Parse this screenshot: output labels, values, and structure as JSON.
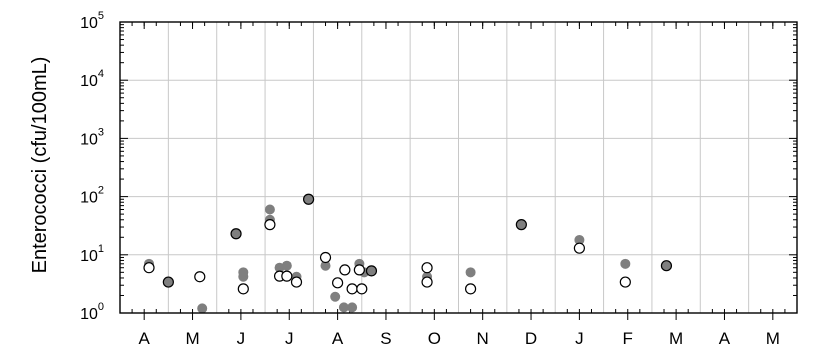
{
  "chart_data": {
    "type": "scatter",
    "title": "",
    "xlabel": "",
    "ylabel": "Enterococci (cfu/100mL)",
    "yscale": "log",
    "ylim": [
      1,
      100000
    ],
    "y_ticks": [
      {
        "base": "10",
        "exp": "0",
        "value": 1
      },
      {
        "base": "10",
        "exp": "1",
        "value": 10
      },
      {
        "base": "10",
        "exp": "2",
        "value": 100
      },
      {
        "base": "10",
        "exp": "3",
        "value": 1000
      },
      {
        "base": "10",
        "exp": "4",
        "value": 10000
      },
      {
        "base": "10",
        "exp": "5",
        "value": 100000
      }
    ],
    "categories": [
      "A",
      "M",
      "J",
      "J",
      "A",
      "S",
      "O",
      "N",
      "D",
      "J",
      "F",
      "M",
      "A",
      "M"
    ],
    "grid": true,
    "legend": "none",
    "colors": {
      "filled": "#7f7f7f",
      "open_fill": "#ffffff",
      "stroke": "#000000",
      "grid": "#c8c8c8"
    },
    "series": [
      {
        "marker": "filled",
        "points": [
          {
            "x": 0.1,
            "y": 7
          },
          {
            "x": 1.2,
            "y": 1.2
          },
          {
            "x": 2.05,
            "y": 4.2
          },
          {
            "x": 2.05,
            "y": 5
          },
          {
            "x": 2.6,
            "y": 40
          },
          {
            "x": 2.6,
            "y": 60
          },
          {
            "x": 2.8,
            "y": 6
          },
          {
            "x": 2.95,
            "y": 6.5
          },
          {
            "x": 3.15,
            "y": 4.2
          },
          {
            "x": 3.75,
            "y": 6.5
          },
          {
            "x": 3.95,
            "y": 1.9
          },
          {
            "x": 4.13,
            "y": 1.25
          },
          {
            "x": 4.3,
            "y": 1.25
          },
          {
            "x": 4.45,
            "y": 7
          },
          {
            "x": 4.55,
            "y": 5
          },
          {
            "x": 5.85,
            "y": 4.2
          },
          {
            "x": 6.75,
            "y": 5
          },
          {
            "x": 9.0,
            "y": 18
          },
          {
            "x": 9.95,
            "y": 7
          }
        ]
      },
      {
        "marker": "open",
        "points": [
          {
            "x": 0.1,
            "y": 6
          },
          {
            "x": 1.15,
            "y": 4.2
          },
          {
            "x": 2.05,
            "y": 2.6
          },
          {
            "x": 2.6,
            "y": 33
          },
          {
            "x": 2.8,
            "y": 4.3
          },
          {
            "x": 2.95,
            "y": 4.3
          },
          {
            "x": 3.15,
            "y": 3.4
          },
          {
            "x": 3.75,
            "y": 9
          },
          {
            "x": 4.0,
            "y": 3.3
          },
          {
            "x": 4.15,
            "y": 5.5
          },
          {
            "x": 4.3,
            "y": 2.6
          },
          {
            "x": 4.45,
            "y": 5.5
          },
          {
            "x": 4.5,
            "y": 2.6
          },
          {
            "x": 5.85,
            "y": 3.4
          },
          {
            "x": 5.85,
            "y": 6
          },
          {
            "x": 6.75,
            "y": 2.6
          },
          {
            "x": 9.0,
            "y": 13
          },
          {
            "x": 9.95,
            "y": 3.4
          }
        ]
      },
      {
        "marker": "filled-outlined",
        "points": [
          {
            "x": 0.5,
            "y": 3.4
          },
          {
            "x": 1.9,
            "y": 23
          },
          {
            "x": 3.4,
            "y": 90
          },
          {
            "x": 4.7,
            "y": 5.3
          },
          {
            "x": 7.8,
            "y": 33
          },
          {
            "x": 10.8,
            "y": 6.5
          }
        ]
      }
    ]
  }
}
